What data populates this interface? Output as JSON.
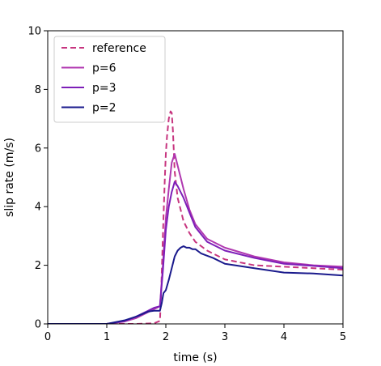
{
  "chart_data": {
    "type": "line",
    "title": "",
    "xlabel": "time (s)",
    "ylabel": "slip rate (m/s)",
    "xlim": [
      0,
      5
    ],
    "ylim": [
      0,
      10
    ],
    "xticks": [
      "0",
      "1",
      "2",
      "3",
      "4",
      "5"
    ],
    "yticks": [
      "0",
      "2",
      "4",
      "6",
      "8",
      "10"
    ],
    "grid": false,
    "legend_position": "top-left",
    "series": [
      {
        "name": "reference",
        "color": "#c7357f",
        "style": "dashed",
        "x": [
          0,
          1.5,
          1.8,
          1.9,
          1.92,
          1.95,
          1.98,
          2.0,
          2.02,
          2.05,
          2.08,
          2.1,
          2.12,
          2.15,
          2.2,
          2.3,
          2.4,
          2.5,
          2.7,
          3.0,
          3.5,
          4.0,
          4.5,
          5.0
        ],
        "y": [
          0,
          0,
          0.02,
          0.1,
          1.0,
          3.0,
          4.8,
          5.8,
          6.4,
          7.0,
          7.25,
          7.2,
          6.6,
          5.2,
          4.3,
          3.5,
          3.1,
          2.8,
          2.5,
          2.2,
          2.0,
          1.95,
          1.9,
          1.85
        ]
      },
      {
        "name": "p=6",
        "color": "#b038b0",
        "style": "solid",
        "x": [
          0,
          1.0,
          1.3,
          1.5,
          1.7,
          1.8,
          1.9,
          1.95,
          2.0,
          2.05,
          2.1,
          2.15,
          2.2,
          2.25,
          2.3,
          2.4,
          2.5,
          2.7,
          3.0,
          3.5,
          4.0,
          4.5,
          5.0
        ],
        "y": [
          0,
          0,
          0.08,
          0.2,
          0.4,
          0.5,
          0.6,
          2.0,
          3.6,
          4.6,
          5.5,
          5.8,
          5.4,
          5.0,
          4.6,
          3.9,
          3.4,
          2.9,
          2.6,
          2.3,
          2.1,
          2.0,
          1.95
        ]
      },
      {
        "name": "p=3",
        "color": "#7d1fb8",
        "style": "solid",
        "x": [
          0,
          1.0,
          1.3,
          1.5,
          1.7,
          1.8,
          1.9,
          1.95,
          2.0,
          2.05,
          2.1,
          2.15,
          2.2,
          2.3,
          2.4,
          2.5,
          2.7,
          3.0,
          3.5,
          4.0,
          4.5,
          5.0
        ],
        "y": [
          0,
          0,
          0.1,
          0.25,
          0.45,
          0.55,
          0.6,
          1.8,
          3.2,
          4.0,
          4.5,
          4.85,
          4.7,
          4.3,
          3.8,
          3.3,
          2.8,
          2.5,
          2.25,
          2.05,
          1.98,
          1.9
        ]
      },
      {
        "name": "p=2",
        "color": "#1a1a8c",
        "style": "solid",
        "x": [
          0,
          1.0,
          1.3,
          1.5,
          1.7,
          1.8,
          1.9,
          1.93,
          1.96,
          2.0,
          2.05,
          2.1,
          2.15,
          2.2,
          2.25,
          2.3,
          2.35,
          2.4,
          2.45,
          2.5,
          2.6,
          2.8,
          3.0,
          3.5,
          4.0,
          4.5,
          5.0
        ],
        "y": [
          0,
          0,
          0.12,
          0.25,
          0.42,
          0.45,
          0.45,
          0.7,
          1.05,
          1.15,
          1.5,
          1.9,
          2.3,
          2.5,
          2.6,
          2.65,
          2.6,
          2.6,
          2.55,
          2.55,
          2.4,
          2.25,
          2.05,
          1.9,
          1.75,
          1.72,
          1.65
        ]
      }
    ]
  }
}
